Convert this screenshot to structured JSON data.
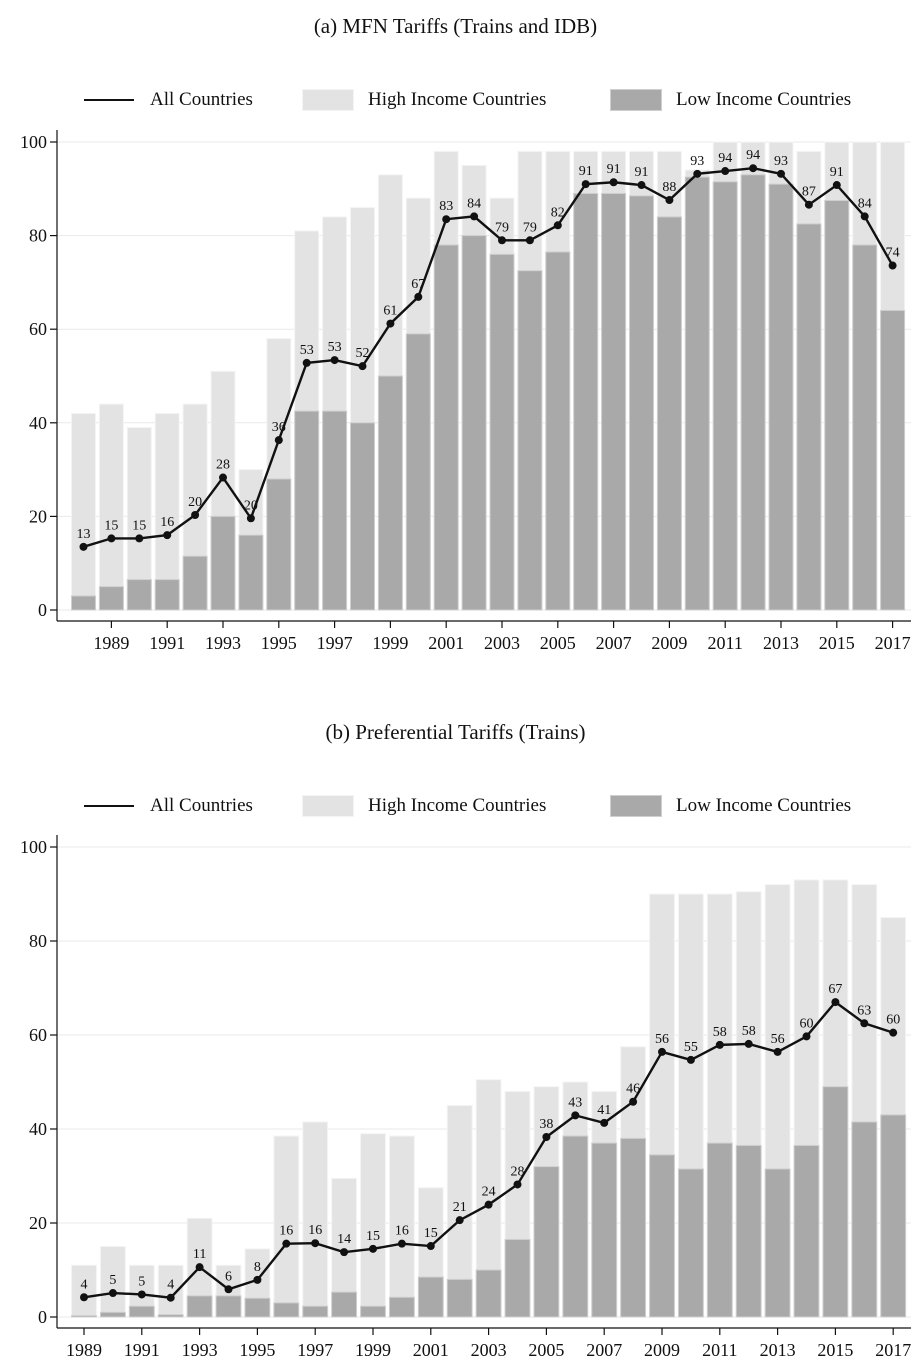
{
  "colors": {
    "high_income": "#e3e3e3",
    "high_income_edge": "#f4f4f4",
    "low_income": "#a9a9a9",
    "low_income_edge": "#cfcfcf",
    "line": "#111111",
    "grid": "#e9e9e9"
  },
  "chart_data": [
    {
      "type": "bar",
      "title": "(a)  MFN Tariffs (Trains and IDB)",
      "legend": [
        "All Countries",
        "High Income Countries",
        "Low Income Countries"
      ],
      "legend_position": "top",
      "x": [
        1988,
        1989,
        1990,
        1991,
        1992,
        1993,
        1994,
        1995,
        1996,
        1997,
        1998,
        1999,
        2000,
        2001,
        2002,
        2003,
        2004,
        2005,
        2006,
        2007,
        2008,
        2009,
        2010,
        2011,
        2012,
        2013,
        2014,
        2015,
        2016,
        2017
      ],
      "x_tick_labels": [
        "1989",
        "1991",
        "1993",
        "1995",
        "1997",
        "1999",
        "2001",
        "2003",
        "2005",
        "2007",
        "2009",
        "2011",
        "2013",
        "2015",
        "2017"
      ],
      "y_tick_labels": [
        "0",
        "20",
        "40",
        "60",
        "80",
        "100"
      ],
      "ylim": [
        0,
        100
      ],
      "grid": true,
      "series": [
        {
          "name": "High Income Countries",
          "type": "bar",
          "values": [
            42,
            44,
            39,
            42,
            44,
            51,
            30,
            58,
            81,
            84,
            86,
            93,
            88,
            98,
            95,
            88,
            98,
            98,
            98,
            98,
            98,
            98,
            94,
            100,
            100,
            100,
            98,
            100,
            100,
            100
          ]
        },
        {
          "name": "Low Income Countries",
          "type": "bar",
          "values": [
            3,
            5,
            6.5,
            6.5,
            11.5,
            20,
            16,
            28,
            42.5,
            42.5,
            40,
            50,
            59,
            78,
            80,
            76,
            72.5,
            76.5,
            89,
            89,
            88.5,
            84,
            92.5,
            91.5,
            93,
            91,
            82.5,
            87.5,
            78,
            64
          ]
        },
        {
          "name": "All Countries",
          "type": "line",
          "values": [
            13.5,
            15.3,
            15.3,
            16,
            20.3,
            28.3,
            19.6,
            36.3,
            52.8,
            53.4,
            52.1,
            61.2,
            66.9,
            83.5,
            84.1,
            79,
            79,
            82.2,
            91,
            91.4,
            90.8,
            87.6,
            93.2,
            93.8,
            94.4,
            93.2,
            86.6,
            90.8,
            84.1,
            73.6
          ],
          "labels": [
            "13",
            "15",
            "15",
            "16",
            "20",
            "28",
            "20",
            "36",
            "53",
            "53",
            "52",
            "61",
            "67",
            "83",
            "84",
            "79",
            "79",
            "82",
            "91",
            "91",
            "91",
            "88",
            "93",
            "94",
            "94",
            "93",
            "87",
            "91",
            "84",
            "74"
          ]
        }
      ]
    },
    {
      "type": "bar",
      "title": "(b)  Preferential Tariffs (Trains)",
      "legend": [
        "All Countries",
        "High Income Countries",
        "Low Income Countries"
      ],
      "legend_position": "top",
      "x": [
        1989,
        1990,
        1991,
        1992,
        1993,
        1994,
        1995,
        1996,
        1997,
        1998,
        1999,
        2000,
        2001,
        2002,
        2003,
        2004,
        2005,
        2006,
        2007,
        2008,
        2009,
        2010,
        2011,
        2012,
        2013,
        2014,
        2015,
        2016,
        2017
      ],
      "x_tick_labels": [
        "1989",
        "1991",
        "1993",
        "1995",
        "1997",
        "1999",
        "2001",
        "2003",
        "2005",
        "2007",
        "2009",
        "2011",
        "2013",
        "2015",
        "2017"
      ],
      "y_tick_labels": [
        "0",
        "20",
        "40",
        "60",
        "80",
        "100"
      ],
      "ylim": [
        0,
        100
      ],
      "grid": true,
      "series": [
        {
          "name": "High Income Countries",
          "type": "bar",
          "values": [
            11,
            15,
            11,
            11,
            21,
            11,
            14.5,
            38.5,
            41.5,
            29.5,
            39,
            38.5,
            27.5,
            45,
            50.5,
            48,
            49,
            50,
            48,
            57.5,
            90,
            90,
            90,
            90.5,
            92,
            93,
            93,
            92,
            85
          ]
        },
        {
          "name": "Low Income Countries",
          "type": "bar",
          "values": [
            0.3,
            1,
            2.3,
            0.5,
            4.5,
            4.5,
            4,
            3,
            2.3,
            5.3,
            2.3,
            4.2,
            8.5,
            8,
            10,
            16.5,
            32,
            38.5,
            37,
            38,
            34.5,
            31.5,
            37,
            36.5,
            31.5,
            36.5,
            49,
            41.5,
            43
          ]
        },
        {
          "name": "All Countries",
          "type": "line",
          "values": [
            4.2,
            5.1,
            4.8,
            4.1,
            10.6,
            5.9,
            7.9,
            15.6,
            15.7,
            13.8,
            14.5,
            15.6,
            15.1,
            20.6,
            23.9,
            28.2,
            38.3,
            42.9,
            41.3,
            45.8,
            56.4,
            54.7,
            57.9,
            58.1,
            56.4,
            59.7,
            67,
            62.5,
            60.5
          ],
          "labels": [
            "4",
            "5",
            "5",
            "4",
            "11",
            "6",
            "8",
            "16",
            "16",
            "14",
            "15",
            "16",
            "15",
            "21",
            "24",
            "28",
            "38",
            "43",
            "41",
            "46",
            "56",
            "55",
            "58",
            "58",
            "56",
            "60",
            "67",
            "63",
            "60"
          ]
        }
      ]
    }
  ]
}
